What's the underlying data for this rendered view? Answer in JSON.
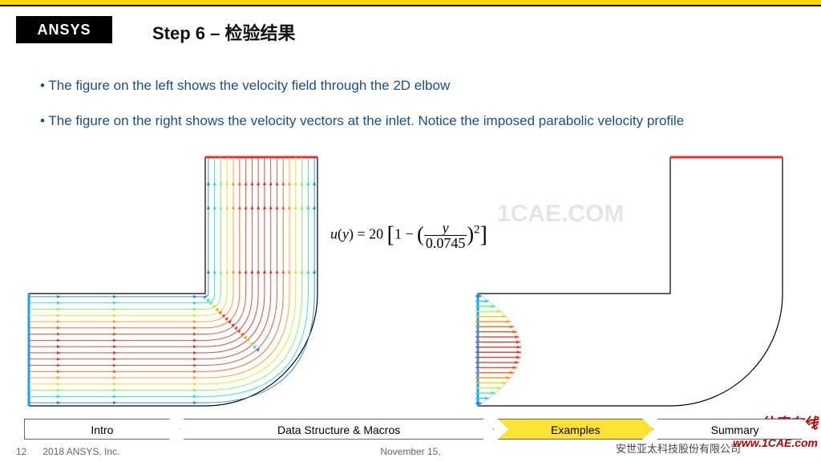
{
  "branding": {
    "logo": "ANSYS"
  },
  "title": "Step 6 – 检验结果",
  "bullets": [
    "The figure on the left shows the velocity field through the 2D elbow",
    "The figure on the right shows the velocity vectors at the inlet.  Notice the imposed parabolic velocity profile"
  ],
  "formula": "u(y) = 20 [ 1 − ( y / 0.0745 )² ]",
  "left_figure": {
    "type": "vector-field",
    "geometry": "L-elbow",
    "outer_width": 360,
    "outer_height": 310,
    "channel_width": 140,
    "bend_radius_inner": 10,
    "outline_color": "#000000",
    "outline_width": 1.2,
    "inlet_color": "#1a9cff",
    "outlet_color": "#e7302a",
    "colormap": [
      "#1a3cff",
      "#1a9cff",
      "#1ae0e0",
      "#3cff7a",
      "#d8ff1a",
      "#ffb01a",
      "#ff5a1a",
      "#e7302a"
    ],
    "streamlines": 18
  },
  "right_figure": {
    "type": "inlet-vectors",
    "geometry": "L-elbow-outline",
    "outer_width": 380,
    "outer_height": 310,
    "channel_width": 140,
    "outline_color": "#000000",
    "outline_width": 1.2,
    "inlet_color": "#1a9cff",
    "outlet_color": "#e7302a",
    "vector_count": 22,
    "profile": "parabolic",
    "max_length": 54,
    "colormap": [
      "#1a3cff",
      "#1a9cff",
      "#1ae0e0",
      "#3cff7a",
      "#d8ff1a",
      "#ffb01a",
      "#ff5a1a",
      "#e7302a"
    ]
  },
  "watermark": {
    "big": "1CAE.COM",
    "tag_cn": "仿真在线",
    "url": "www.1CAE.com"
  },
  "crumbs": [
    {
      "label": "Intro",
      "active": false
    },
    {
      "label": "Data Structure & Macros",
      "active": false
    },
    {
      "label": "Examples",
      "active": true
    },
    {
      "label": "Summary",
      "active": false
    }
  ],
  "footer": {
    "page": "12",
    "copyright": "2018   ANSYS, Inc.",
    "date": "November 15,",
    "right": "安世亚太科技股份有限公司"
  }
}
